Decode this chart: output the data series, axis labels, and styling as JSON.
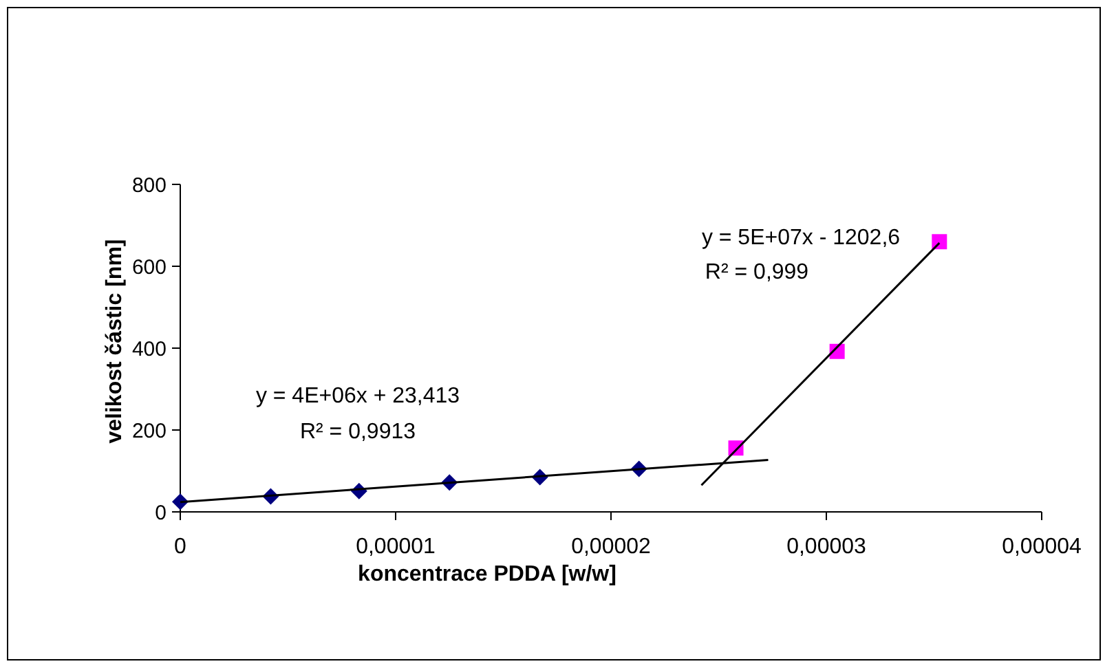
{
  "chart_data": {
    "type": "scatter",
    "xlabel": "koncentrace PDDA [w/w]",
    "ylabel": "velikost částic [nm]",
    "xlim": [
      0,
      4e-05
    ],
    "xticks": [
      0,
      {
        "value": 1e-05,
        "label": "0,00001"
      },
      {
        "value": 2e-05,
        "label": "0,00002"
      },
      {
        "value": 3e-05,
        "label": "0,00003"
      },
      {
        "value": 4e-05,
        "label": "0,00004"
      }
    ],
    "ylim": [
      0,
      800
    ],
    "yticks": [
      0,
      200,
      400,
      600,
      800
    ],
    "grid": false,
    "series": [
      {
        "marker": "diamond",
        "color": "#000080",
        "x": [
          0,
          4.2e-06,
          8.3e-06,
          1.25e-05,
          1.67e-05,
          2.13e-05
        ],
        "values": [
          25,
          38,
          51,
          72,
          85,
          105
        ]
      },
      {
        "marker": "square",
        "color": "#ff00ff",
        "x": [
          2.58e-05,
          3.05e-05,
          3.525e-05
        ],
        "values": [
          156,
          392,
          660
        ]
      },
      {
        "type": "line",
        "marker": "none",
        "color": "#000000",
        "x": [
          0,
          2.73e-05
        ],
        "values": [
          24,
          127
        ]
      },
      {
        "type": "line",
        "marker": "none",
        "color": "#000000",
        "x": [
          2.42e-05,
          3.525e-05
        ],
        "values": [
          65,
          657
        ]
      }
    ],
    "annotations": [
      "y = 4E+06x + 23,413",
      "R² = 0,9913",
      "y = 5E+07x - 1202,6",
      "R² = 0,999"
    ]
  }
}
